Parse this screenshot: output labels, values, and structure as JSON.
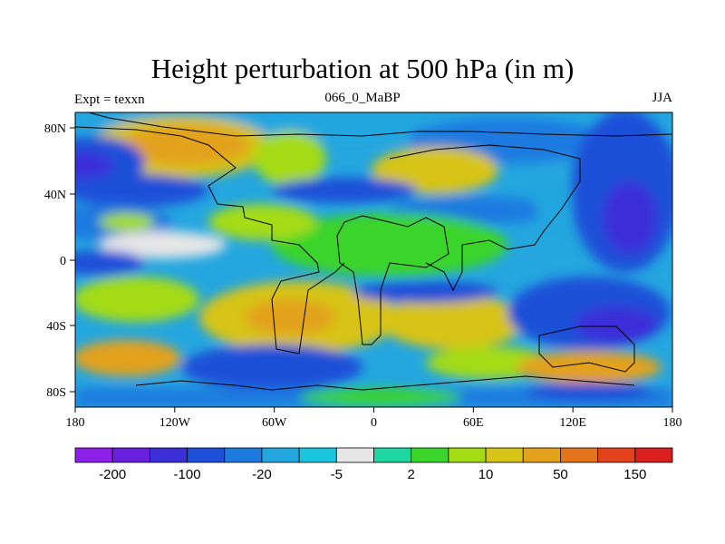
{
  "title": "Height perturbation at 500 hPa (in m)",
  "left_label": "Expt = texxn",
  "center_label": "066_0_MaBP",
  "right_label": "JJA",
  "axes": {
    "lon_ticks": [
      "180",
      "120W",
      "60W",
      "0",
      "60E",
      "120E",
      "180"
    ],
    "lat_ticks": [
      "80N",
      "40N",
      "0",
      "40S",
      "80S"
    ]
  },
  "colors": {
    "levels": [
      "#8c1fe8",
      "#6a1fe0",
      "#3b2fd9",
      "#1e4fd8",
      "#1f7ae0",
      "#24a6df",
      "#19c6dc",
      "#e6e6e6",
      "#1fd6a0",
      "#3ad42c",
      "#a4dc14",
      "#d7c419",
      "#e3a21b",
      "#e2741d",
      "#e4421c",
      "#d91f1f"
    ],
    "colorbar_labels": [
      "-200",
      "-100",
      "-20",
      "-5",
      "2",
      "10",
      "50",
      "150"
    ]
  }
}
